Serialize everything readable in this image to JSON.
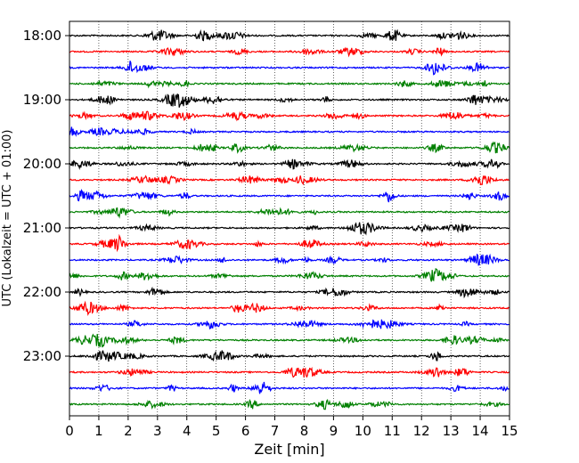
{
  "chart_data": {
    "type": "line",
    "title": "",
    "xlabel": "Zeit  [min]",
    "ylabel": "UTC (Lokalzeit = UTC + 01:00)",
    "xlim": [
      0,
      15
    ],
    "x_ticks": [
      "0",
      "1",
      "2",
      "3",
      "4",
      "5",
      "6",
      "7",
      "8",
      "9",
      "10",
      "11",
      "12",
      "13",
      "14",
      "15"
    ],
    "y_tick_labels": [
      "18:00",
      "19:00",
      "20:00",
      "21:00",
      "22:00",
      "23:00"
    ],
    "grid": "vertical dotted lines at each minute",
    "trace_colors": [
      "#000000",
      "#ff0000",
      "#0000ff",
      "#008000"
    ],
    "traces_per_hour": 4,
    "minutes_per_trace": 15,
    "first_trace_start": "18:00",
    "trace_count": 24,
    "series_description": "Helicorder record: each row is a 15-minute seismogram trace; rows stacked downward in time from 18:00 to 23:45 UTC, cycling black, red, blue, green"
  }
}
